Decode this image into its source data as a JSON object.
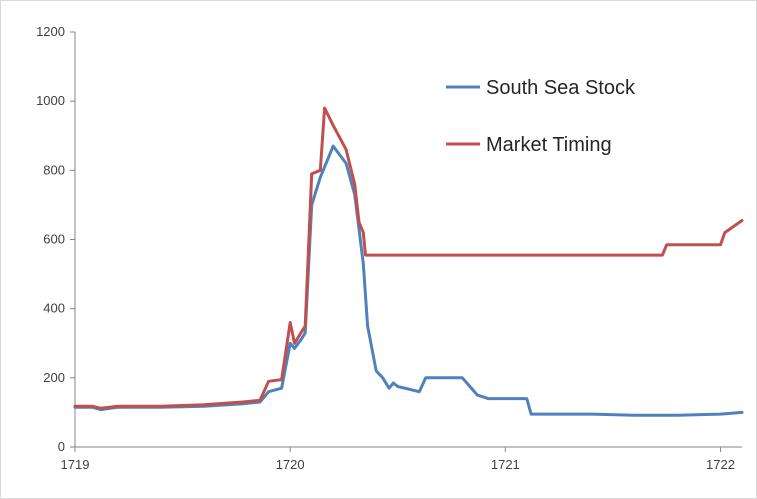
{
  "chart_data": {
    "type": "line",
    "title": "",
    "xlabel": "",
    "ylabel": "",
    "xlim": [
      1719,
      1722.1
    ],
    "ylim": [
      0,
      1200
    ],
    "x_ticks": [
      1719,
      1720,
      1721,
      1722
    ],
    "y_ticks": [
      0,
      200,
      400,
      600,
      800,
      1000,
      1200
    ],
    "grid": false,
    "legend_position": "top-right",
    "series": [
      {
        "name": "South Sea Stock",
        "color": "#4f81bd",
        "x": [
          1719.0,
          1719.08,
          1719.12,
          1719.2,
          1719.4,
          1719.6,
          1719.78,
          1719.86,
          1719.9,
          1719.96,
          1720.0,
          1720.02,
          1720.05,
          1720.07,
          1720.1,
          1720.14,
          1720.2,
          1720.26,
          1720.3,
          1720.34,
          1720.36,
          1720.4,
          1720.43,
          1720.46,
          1720.48,
          1720.5,
          1720.6,
          1720.63,
          1720.7,
          1720.8,
          1720.87,
          1720.92,
          1721.1,
          1721.12,
          1721.4,
          1721.6,
          1721.8,
          1722.0,
          1722.1
        ],
        "values": [
          115,
          115,
          108,
          115,
          115,
          118,
          125,
          130,
          160,
          170,
          300,
          285,
          310,
          330,
          700,
          780,
          870,
          820,
          730,
          530,
          350,
          220,
          200,
          170,
          185,
          175,
          160,
          200,
          200,
          200,
          150,
          140,
          140,
          95,
          95,
          92,
          92,
          95,
          100
        ]
      },
      {
        "name": "Market Timing",
        "color": "#c0504d",
        "x": [
          1719.0,
          1719.08,
          1719.12,
          1719.2,
          1719.4,
          1719.6,
          1719.78,
          1719.86,
          1719.9,
          1719.96,
          1720.0,
          1720.02,
          1720.05,
          1720.07,
          1720.1,
          1720.14,
          1720.16,
          1720.2,
          1720.26,
          1720.3,
          1720.32,
          1720.34,
          1720.35,
          1720.5,
          1721.0,
          1721.5,
          1721.73,
          1721.75,
          1722.0,
          1722.02,
          1722.1
        ],
        "values": [
          118,
          118,
          112,
          118,
          118,
          122,
          130,
          135,
          190,
          195,
          360,
          300,
          330,
          350,
          790,
          800,
          980,
          930,
          860,
          760,
          650,
          620,
          555,
          555,
          555,
          555,
          555,
          585,
          585,
          620,
          655
        ]
      }
    ]
  }
}
